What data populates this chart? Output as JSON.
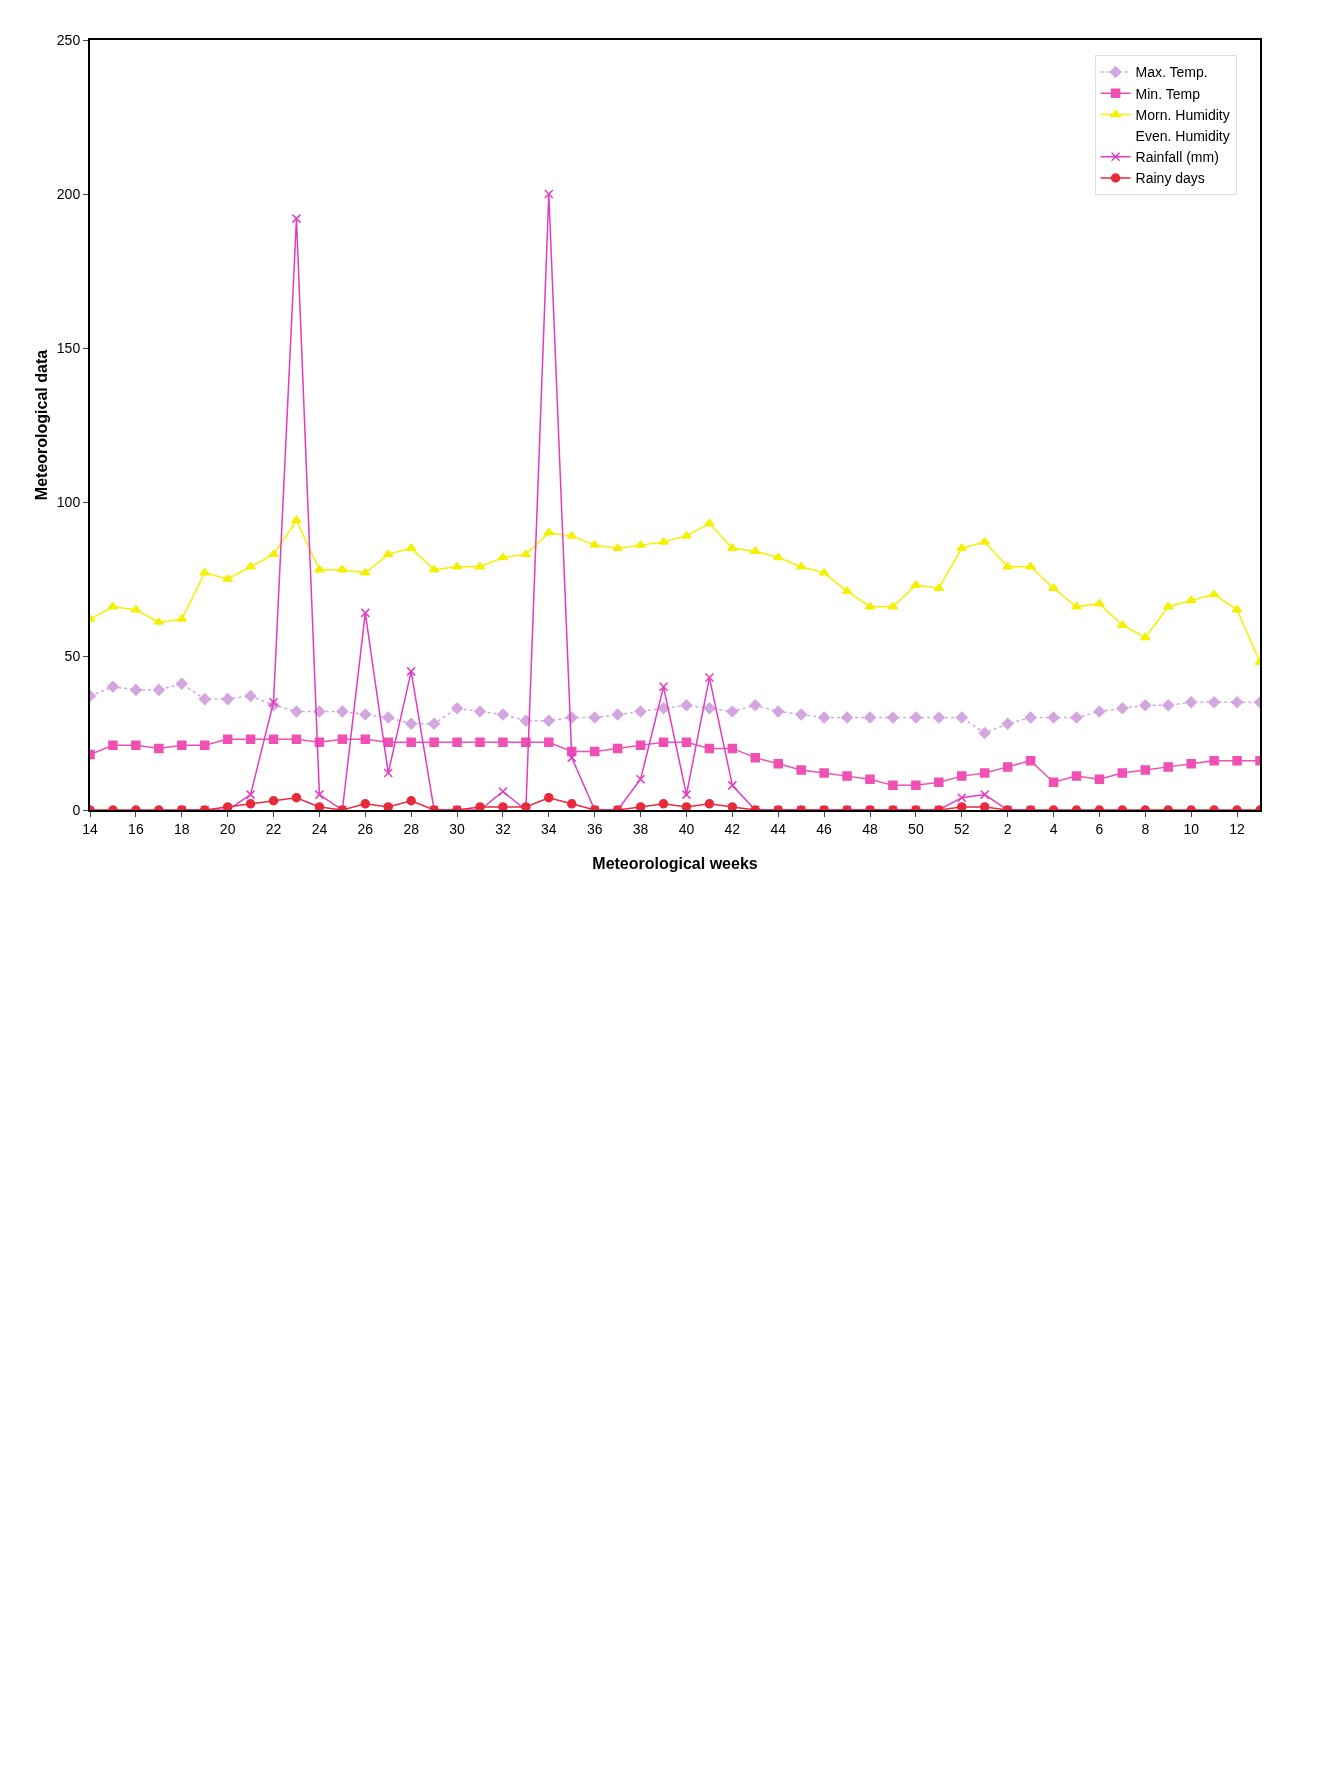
{
  "chart_data": {
    "type": "line",
    "xlabel": "Meteorological weeks",
    "ylabel": "Meteorological data",
    "categories": [
      "14",
      null,
      "16",
      null,
      "18",
      null,
      "20",
      null,
      "22",
      null,
      "24",
      null,
      "26",
      null,
      "28",
      null,
      "30",
      null,
      "32",
      null,
      "34",
      null,
      "36",
      null,
      "38",
      null,
      "40",
      null,
      "42",
      null,
      "44",
      null,
      "46",
      null,
      "48",
      null,
      "50",
      null,
      "52",
      null,
      "2",
      null,
      "4",
      null,
      "6",
      null,
      "8",
      null,
      "10",
      null,
      "12",
      null
    ],
    "ylim": [
      0,
      250
    ],
    "yticks": [
      0,
      50,
      100,
      150,
      200,
      250
    ],
    "legend": "top right",
    "series": [
      {
        "name": "Max. Temp.",
        "color": "#d4a6e0",
        "marker": "diamond",
        "line_style": "dotted",
        "values": [
          37,
          40,
          39,
          39,
          41,
          36,
          36,
          37,
          34,
          32,
          32,
          32,
          31,
          30,
          28,
          28,
          33,
          32,
          31,
          29,
          29,
          30,
          30,
          31,
          32,
          33,
          34,
          33,
          32,
          34,
          32,
          31,
          30,
          30,
          30,
          30,
          30,
          30,
          30,
          25,
          28,
          30,
          30,
          30,
          32,
          33,
          34,
          34,
          35,
          35,
          35,
          35
        ]
      },
      {
        "name": "Min. Temp",
        "color": "#f050b4",
        "marker": "square",
        "line_style": "solid",
        "values": [
          18,
          21,
          21,
          20,
          21,
          21,
          23,
          23,
          23,
          23,
          22,
          23,
          23,
          22,
          22,
          22,
          22,
          22,
          22,
          22,
          22,
          19,
          19,
          20,
          21,
          22,
          22,
          20,
          20,
          17,
          15,
          13,
          12,
          11,
          10,
          8,
          8,
          9,
          11,
          12,
          14,
          16,
          9,
          11,
          10,
          12,
          13,
          14,
          15,
          16,
          16,
          16
        ]
      },
      {
        "name": "Morn. Humidity",
        "color": "#f5f000",
        "marker": "triangle",
        "line_style": "solid",
        "values": [
          62,
          66,
          65,
          61,
          62,
          77,
          75,
          79,
          83,
          94,
          78,
          78,
          77,
          83,
          85,
          78,
          79,
          79,
          82,
          83,
          90,
          89,
          86,
          85,
          86,
          87,
          89,
          93,
          85,
          84,
          82,
          79,
          77,
          71,
          66,
          66,
          73,
          72,
          85,
          87,
          79,
          79,
          72,
          66,
          67,
          60,
          56,
          66,
          68,
          70,
          65,
          48
        ]
      },
      {
        "name": "Even. Humidity",
        "marker": "none",
        "line_style": "solid",
        "values": [
          null,
          null,
          null,
          null,
          null,
          null,
          null,
          null,
          null,
          null,
          null,
          null,
          null,
          null,
          null,
          null,
          null,
          null,
          null,
          null,
          null,
          null,
          null,
          null,
          null,
          null,
          null,
          null,
          null,
          null,
          null,
          null,
          null,
          null,
          null,
          null,
          null,
          null,
          null,
          null,
          null,
          null,
          null,
          null,
          null,
          null,
          null,
          null,
          null,
          null,
          null,
          null
        ]
      },
      {
        "name": "Rainfall (mm)",
        "color": "#e23cbf",
        "marker": "cross",
        "line_style": "solid",
        "values": [
          null,
          null,
          null,
          null,
          0,
          0,
          0,
          5,
          35,
          192,
          5,
          0,
          64,
          12,
          45,
          0,
          0,
          0,
          6,
          0,
          200,
          17,
          0,
          0,
          10,
          40,
          5,
          43,
          8,
          0,
          0,
          0,
          0,
          0,
          0,
          0,
          0,
          0,
          4,
          5,
          0,
          0,
          null,
          null,
          null,
          null,
          null,
          null,
          null,
          null,
          null,
          null
        ]
      },
      {
        "name": "Rainy days",
        "color": "#e82a3c",
        "marker": "circle",
        "line_style": "solid",
        "values": [
          0,
          0,
          0,
          0,
          0,
          0,
          1,
          2,
          3,
          4,
          1,
          0,
          2,
          1,
          3,
          0,
          0,
          1,
          1,
          1,
          4,
          2,
          0,
          0,
          1,
          2,
          1,
          2,
          1,
          0,
          0,
          0,
          0,
          0,
          0,
          0,
          0,
          0,
          1,
          1,
          0,
          0,
          0,
          0,
          0,
          0,
          0,
          0,
          0,
          0,
          0,
          0
        ]
      }
    ]
  }
}
